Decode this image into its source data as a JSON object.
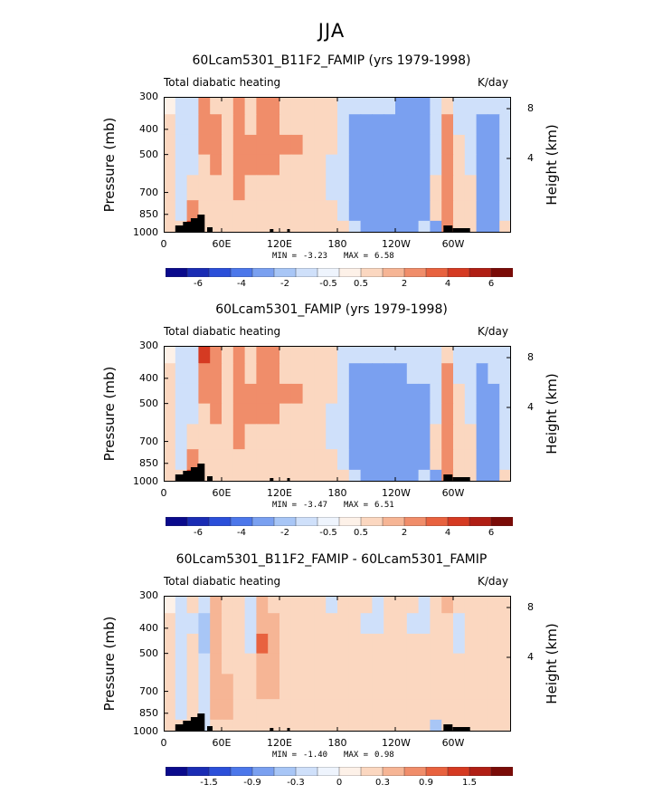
{
  "suptitle": "JJA",
  "common": {
    "var_label": "Total diabatic heating",
    "units_label": "K/day",
    "ylabel_left": "Pressure (mb)",
    "ylabel_right": "Height (km)"
  },
  "chart_data": [
    {
      "type": "heatmap",
      "title": "60Lcam5301_B11F2_FAMIP (yrs 1979-1998)",
      "x_ticks": [
        "0",
        "60E",
        "120E",
        "180",
        "120W",
        "60W"
      ],
      "x_tick_values": [
        0,
        60,
        120,
        180,
        240,
        300
      ],
      "xlim": [
        0,
        360
      ],
      "y_ticks": [
        "300",
        "400",
        "500",
        "700",
        "850",
        "1000"
      ],
      "y_tick_values": [
        300,
        400,
        500,
        700,
        850,
        1000
      ],
      "ylim": [
        1000,
        300
      ],
      "right_ticks": [
        "8",
        "4"
      ],
      "right_tick_values": [
        8,
        4
      ],
      "min_label": "MIN =",
      "min_value": "-3.23",
      "max_label": "MAX =",
      "max_value": "6.58",
      "colorbar_labels": [
        "-6",
        "-4",
        "-2",
        "-0.5",
        "0.5",
        "2",
        "4",
        "6"
      ],
      "colorbar_colors": [
        "#0a0a8c",
        "#1a2cb4",
        "#2b4fd9",
        "#4c77ea",
        "#7aa0f0",
        "#a8c6f6",
        "#cfe0fa",
        "#eef4fd",
        "#fdf1e8",
        "#fbd7c0",
        "#f6b595",
        "#f08d6a",
        "#e8623f",
        "#d53a22",
        "#b01e14",
        "#7a0b07"
      ],
      "cell_values": [
        [
          0.0,
          -0.5,
          -0.5,
          2,
          0.5,
          0.5,
          2,
          0.5,
          2,
          2,
          0.5,
          0.5,
          0.5,
          0.5,
          0.5,
          -0.5,
          -0.5,
          -0.5,
          -0.5,
          -0.5,
          -2,
          -2,
          -2,
          -0.5,
          0.5,
          -0.5,
          -0.5,
          -0.5,
          -0.5,
          -0.5
        ],
        [
          0.5,
          -0.5,
          -0.5,
          2,
          2,
          0.5,
          2,
          0.5,
          2,
          2,
          0.5,
          0.5,
          0.5,
          0.5,
          0.5,
          -0.5,
          -2,
          -2,
          -2,
          -2,
          -2,
          -2,
          -2,
          -0.5,
          2,
          -0.5,
          -0.5,
          -2,
          -2,
          -0.5
        ],
        [
          0.5,
          -0.5,
          -0.5,
          2,
          2,
          0.5,
          2,
          2,
          2,
          2,
          2,
          2,
          0.5,
          0.5,
          0.5,
          -0.5,
          -2,
          -2,
          -2,
          -2,
          -2,
          -2,
          -2,
          -0.5,
          2,
          0.5,
          -0.5,
          -2,
          -2,
          -0.5
        ],
        [
          0.5,
          -0.5,
          -0.5,
          0.5,
          2,
          0.5,
          2,
          2,
          2,
          2,
          0.5,
          0.5,
          0.5,
          0.5,
          -0.5,
          -0.5,
          -2,
          -2,
          -2,
          -2,
          -2,
          -2,
          -2,
          -0.5,
          2,
          0.5,
          -0.5,
          -2,
          -2,
          -0.5
        ],
        [
          0.5,
          -0.5,
          0.5,
          0.5,
          0.5,
          0.5,
          2,
          0.5,
          0.5,
          0.5,
          0.5,
          0.5,
          0.5,
          0.5,
          -0.5,
          -0.5,
          -2,
          -2,
          -2,
          -2,
          -2,
          -2,
          -2,
          0.5,
          2,
          0.5,
          0.5,
          -2,
          -2,
          -0.5
        ],
        [
          0.5,
          -0.5,
          2,
          0.5,
          0.5,
          0.5,
          0.5,
          0.5,
          0.5,
          0.5,
          0.5,
          0.5,
          0.5,
          0.5,
          0.5,
          -0.5,
          -2,
          -2,
          -2,
          -2,
          -2,
          -2,
          -2,
          0.5,
          2,
          0.5,
          0.5,
          -2,
          -2,
          -0.5
        ],
        [
          0.5,
          0.5,
          4,
          0.5,
          0.5,
          0.5,
          0.5,
          0.5,
          0.5,
          0.5,
          0.5,
          0.5,
          0.5,
          0.5,
          0.5,
          0.5,
          -0.5,
          -2,
          -2,
          -2,
          -2,
          -2,
          -0.5,
          -2,
          2,
          0.5,
          0.5,
          -2,
          -2,
          0.5
        ]
      ]
    },
    {
      "type": "heatmap",
      "title": "60Lcam5301_FAMIP (yrs 1979-1998)",
      "x_ticks": [
        "0",
        "60E",
        "120E",
        "180",
        "120W",
        "60W"
      ],
      "x_tick_values": [
        0,
        60,
        120,
        180,
        240,
        300
      ],
      "xlim": [
        0,
        360
      ],
      "y_ticks": [
        "300",
        "400",
        "500",
        "700",
        "850",
        "1000"
      ],
      "y_tick_values": [
        300,
        400,
        500,
        700,
        850,
        1000
      ],
      "ylim": [
        1000,
        300
      ],
      "right_ticks": [
        "8",
        "4"
      ],
      "right_tick_values": [
        8,
        4
      ],
      "min_label": "MIN =",
      "min_value": "-3.47",
      "max_label": "MAX =",
      "max_value": "6.51",
      "colorbar_labels": [
        "-6",
        "-4",
        "-2",
        "-0.5",
        "0.5",
        "2",
        "4",
        "6"
      ],
      "colorbar_colors": [
        "#0a0a8c",
        "#1a2cb4",
        "#2b4fd9",
        "#4c77ea",
        "#7aa0f0",
        "#a8c6f6",
        "#cfe0fa",
        "#eef4fd",
        "#fdf1e8",
        "#fbd7c0",
        "#f6b595",
        "#f08d6a",
        "#e8623f",
        "#d53a22",
        "#b01e14",
        "#7a0b07"
      ],
      "cell_values": [
        [
          0.0,
          -0.5,
          -0.5,
          4,
          2,
          0.5,
          2,
          0.5,
          2,
          2,
          0.5,
          0.5,
          0.5,
          0.5,
          0.5,
          -0.5,
          -0.5,
          -0.5,
          -0.5,
          -0.5,
          -0.5,
          -0.5,
          -0.5,
          -0.5,
          0.5,
          -0.5,
          -0.5,
          -0.5,
          -0.5,
          -0.5
        ],
        [
          0.5,
          -0.5,
          -0.5,
          2,
          2,
          0.5,
          2,
          0.5,
          2,
          2,
          0.5,
          0.5,
          0.5,
          0.5,
          0.5,
          -0.5,
          -2,
          -2,
          -2,
          -2,
          -2,
          -0.5,
          -0.5,
          -0.5,
          2,
          -0.5,
          -0.5,
          -2,
          -0.5,
          -0.5
        ],
        [
          0.5,
          -0.5,
          -0.5,
          2,
          2,
          0.5,
          2,
          2,
          2,
          2,
          2,
          2,
          0.5,
          0.5,
          0.5,
          -0.5,
          -2,
          -2,
          -2,
          -2,
          -2,
          -2,
          -2,
          -0.5,
          2,
          0.5,
          -0.5,
          -2,
          -2,
          -0.5
        ],
        [
          0.5,
          -0.5,
          -0.5,
          0.5,
          2,
          0.5,
          2,
          2,
          2,
          2,
          0.5,
          0.5,
          0.5,
          0.5,
          -0.5,
          -0.5,
          -2,
          -2,
          -2,
          -2,
          -2,
          -2,
          -2,
          -0.5,
          2,
          0.5,
          -0.5,
          -2,
          -2,
          -0.5
        ],
        [
          0.5,
          -0.5,
          0.5,
          0.5,
          0.5,
          0.5,
          2,
          0.5,
          0.5,
          0.5,
          0.5,
          0.5,
          0.5,
          0.5,
          -0.5,
          -0.5,
          -2,
          -2,
          -2,
          -2,
          -2,
          -2,
          -2,
          0.5,
          2,
          0.5,
          0.5,
          -2,
          -2,
          -0.5
        ],
        [
          0.5,
          -0.5,
          2,
          0.5,
          0.5,
          0.5,
          0.5,
          0.5,
          0.5,
          0.5,
          0.5,
          0.5,
          0.5,
          0.5,
          0.5,
          -0.5,
          -2,
          -2,
          -2,
          -2,
          -2,
          -2,
          -2,
          0.5,
          2,
          0.5,
          0.5,
          -2,
          -2,
          -0.5
        ],
        [
          0.5,
          0.5,
          4,
          0.5,
          0.5,
          0.5,
          0.5,
          0.5,
          0.5,
          0.5,
          0.5,
          0.5,
          0.5,
          0.5,
          0.5,
          0.5,
          -0.5,
          -2,
          -2,
          -2,
          -2,
          -2,
          -0.5,
          -2,
          2,
          0.5,
          0.5,
          -2,
          -2,
          0.5
        ]
      ]
    },
    {
      "type": "heatmap",
      "title": "60Lcam5301_B11F2_FAMIP - 60Lcam5301_FAMIP",
      "x_ticks": [
        "0",
        "60E",
        "120E",
        "180",
        "120W",
        "60W"
      ],
      "x_tick_values": [
        0,
        60,
        120,
        180,
        240,
        300
      ],
      "xlim": [
        0,
        360
      ],
      "y_ticks": [
        "300",
        "400",
        "500",
        "700",
        "850",
        "1000"
      ],
      "y_tick_values": [
        300,
        400,
        500,
        700,
        850,
        1000
      ],
      "ylim": [
        1000,
        300
      ],
      "right_ticks": [
        "8",
        "4"
      ],
      "right_tick_values": [
        8,
        4
      ],
      "min_label": "MIN =",
      "min_value": "-1.40",
      "max_label": "MAX =",
      "max_value": "0.98",
      "colorbar_labels": [
        "-1.5",
        "-0.9",
        "-0.3",
        "0",
        "0.3",
        "0.9",
        "1.5"
      ],
      "colorbar_colors": [
        "#0a0a8c",
        "#1a2cb4",
        "#2b4fd9",
        "#4c77ea",
        "#7aa0f0",
        "#a8c6f6",
        "#cfe0fa",
        "#eef4fd",
        "#fdf1e8",
        "#fbd7c0",
        "#f6b595",
        "#f08d6a",
        "#e8623f",
        "#d53a22",
        "#b01e14",
        "#7a0b07"
      ],
      "cell_values": [
        [
          0.0,
          -0.1,
          0.1,
          -0.1,
          0.3,
          0.1,
          0.1,
          -0.1,
          0.3,
          0.1,
          0.1,
          0.1,
          0.1,
          0.1,
          -0.1,
          0.1,
          0.1,
          0.1,
          -0.1,
          0.1,
          0.1,
          0.1,
          -0.1,
          0.1,
          0.3,
          0.1,
          0.1,
          0.1,
          0.1,
          0.1
        ],
        [
          0.1,
          -0.1,
          -0.1,
          -0.3,
          0.3,
          0.1,
          0.1,
          -0.1,
          0.3,
          0.3,
          0.1,
          0.1,
          0.1,
          0.1,
          0.1,
          0.1,
          0.1,
          -0.1,
          -0.1,
          0.1,
          0.1,
          -0.1,
          -0.1,
          0.1,
          0.1,
          -0.1,
          0.1,
          0.1,
          0.1,
          0.1
        ],
        [
          0.1,
          -0.1,
          0.1,
          -0.3,
          0.3,
          0.1,
          0.1,
          -0.1,
          0.9,
          0.3,
          0.1,
          0.1,
          0.1,
          0.1,
          0.1,
          0.1,
          0.1,
          0.1,
          0.1,
          0.1,
          0.1,
          0.1,
          0.1,
          0.1,
          0.1,
          -0.1,
          0.1,
          0.1,
          0.1,
          0.1
        ],
        [
          0.1,
          -0.1,
          0.1,
          -0.1,
          0.3,
          0.1,
          0.1,
          0.1,
          0.3,
          0.3,
          0.1,
          0.1,
          0.1,
          0.1,
          0.1,
          0.1,
          0.1,
          0.1,
          0.1,
          0.1,
          0.1,
          0.1,
          0.1,
          0.1,
          0.1,
          0.1,
          0.1,
          0.1,
          0.1,
          0.1
        ],
        [
          0.1,
          -0.1,
          0.1,
          -0.1,
          0.3,
          0.3,
          0.1,
          0.1,
          0.3,
          0.3,
          0.1,
          0.1,
          0.1,
          0.1,
          0.1,
          0.1,
          0.1,
          0.1,
          0.1,
          0.1,
          0.1,
          0.1,
          0.1,
          0.1,
          0.1,
          0.1,
          0.1,
          0.1,
          0.1,
          0.1
        ],
        [
          0.1,
          -0.1,
          0.1,
          -0.1,
          0.3,
          0.3,
          0.1,
          0.1,
          0.1,
          0.1,
          0.1,
          0.1,
          0.1,
          0.1,
          0.1,
          0.1,
          0.1,
          0.1,
          0.1,
          0.1,
          0.1,
          0.1,
          0.1,
          0.1,
          0.1,
          0.1,
          0.1,
          0.1,
          0.1,
          0.1
        ],
        [
          0.1,
          0.1,
          0.1,
          -0.1,
          0.1,
          0.1,
          0.1,
          0.1,
          0.1,
          0.1,
          0.1,
          0.1,
          0.1,
          0.1,
          0.1,
          0.1,
          0.1,
          0.1,
          0.1,
          0.1,
          0.1,
          0.1,
          0.1,
          -0.3,
          0.1,
          0.1,
          0.1,
          0.1,
          0.1,
          0.1
        ]
      ]
    }
  ]
}
